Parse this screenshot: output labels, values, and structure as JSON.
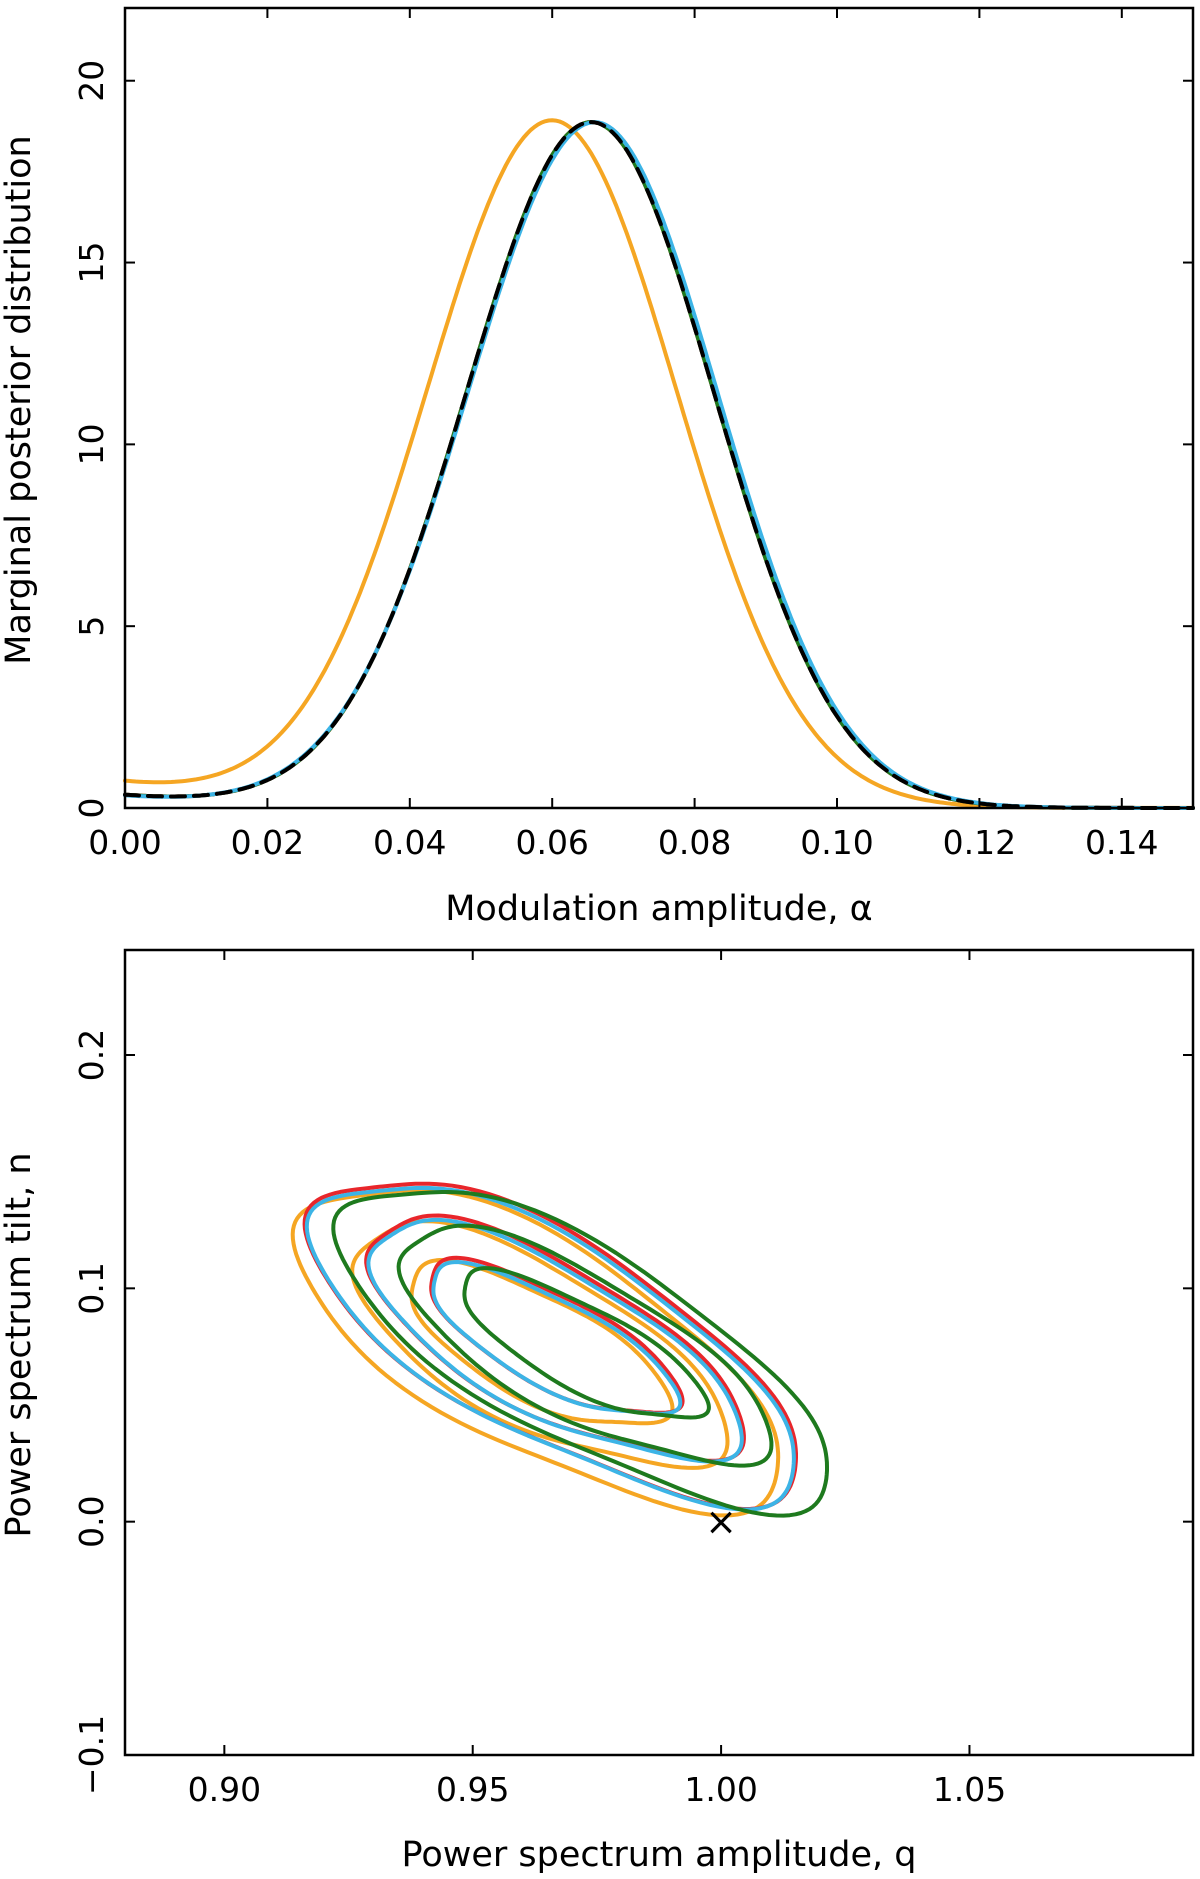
{
  "chart_data": [
    {
      "type": "line",
      "panel": "top",
      "xlabel": "Modulation amplitude, α",
      "ylabel": "Marginal posterior distribution",
      "xlim": [
        0.0,
        0.15
      ],
      "ylim": [
        0,
        22
      ],
      "xticks": [
        0.0,
        0.02,
        0.04,
        0.06,
        0.08,
        0.1,
        0.12,
        0.14
      ],
      "xtick_labels": [
        "0.00",
        "0.02",
        "0.04",
        "0.06",
        "0.08",
        "0.10",
        "0.12",
        "0.14"
      ],
      "yticks": [
        0,
        5,
        10,
        15,
        20
      ],
      "ytick_labels": [
        "0",
        "5",
        "10",
        "15",
        "20"
      ],
      "series": [
        {
          "name": "orange",
          "color": "#f5a623",
          "dash": "",
          "peak_x": 0.06,
          "peak_y": 18.85,
          "sigma_left": 0.0175,
          "sigma_right": 0.0175,
          "floor": 0.7,
          "floor_scale": 0.025
        },
        {
          "name": "red",
          "color": "#e8262b",
          "dash": "",
          "peak_x": 0.0655,
          "peak_y": 18.85,
          "sigma_left": 0.0175,
          "sigma_right": 0.0172,
          "floor": 0.35,
          "floor_scale": 0.02
        },
        {
          "name": "green",
          "color": "#1e7a1e",
          "dash": "",
          "peak_x": 0.0655,
          "peak_y": 18.85,
          "sigma_left": 0.0175,
          "sigma_right": 0.0172,
          "floor": 0.35,
          "floor_scale": 0.02
        },
        {
          "name": "blue",
          "color": "#3cb4e6",
          "dash": "",
          "peak_x": 0.066,
          "peak_y": 18.85,
          "sigma_left": 0.0178,
          "sigma_right": 0.0172,
          "floor": 0.33,
          "floor_scale": 0.02
        },
        {
          "name": "black dashed",
          "color": "#000000",
          "dash": "14,9",
          "peak_x": 0.0655,
          "peak_y": 18.85,
          "sigma_left": 0.0175,
          "sigma_right": 0.0172,
          "floor": 0.35,
          "floor_scale": 0.02
        }
      ]
    },
    {
      "type": "contour",
      "panel": "bottom",
      "xlabel": "Power spectrum amplitude, q",
      "ylabel": "Power spectrum tilt, n",
      "xlim": [
        0.88,
        1.095
      ],
      "ylim": [
        -0.1,
        0.245
      ],
      "xticks": [
        0.9,
        0.95,
        1.0,
        1.05
      ],
      "xtick_labels": [
        "0.90",
        "0.95",
        "1.00",
        "1.05"
      ],
      "yticks": [
        -0.1,
        0.0,
        0.1,
        0.2
      ],
      "ytick_labels": [
        "−0.1",
        "0.0",
        "0.1",
        "0.2"
      ],
      "marker": {
        "symbol": "×",
        "x": 1.0,
        "y": 0.0
      },
      "series": [
        {
          "name": "orange",
          "color": "#f5a623",
          "center": [
            0.963,
            0.075
          ],
          "levels": [
            {
              "a": 0.0645,
              "b": 0.025,
              "angle": -33
            },
            {
              "a": 0.093,
              "b": 0.038,
              "angle": -34
            },
            {
              "a": 0.122,
              "b": 0.05,
              "angle": -35
            }
          ]
        },
        {
          "name": "red",
          "color": "#e8262b",
          "center": [
            0.966,
            0.078
          ],
          "levels": [
            {
              "a": 0.0625,
              "b": 0.022,
              "angle": -33
            },
            {
              "a": 0.094,
              "b": 0.036,
              "angle": -34
            },
            {
              "a": 0.124,
              "b": 0.048,
              "angle": -35
            }
          ]
        },
        {
          "name": "blue",
          "color": "#3cb4e6",
          "center": [
            0.966,
            0.077
          ],
          "levels": [
            {
              "a": 0.0615,
              "b": 0.021,
              "angle": -33
            },
            {
              "a": 0.093,
              "b": 0.035,
              "angle": -34
            },
            {
              "a": 0.123,
              "b": 0.047,
              "angle": -35
            }
          ]
        },
        {
          "name": "green",
          "color": "#1e7a1e",
          "center": [
            0.972,
            0.075
          ],
          "levels": [
            {
              "a": 0.061,
              "b": 0.02,
              "angle": -33
            },
            {
              "a": 0.093,
              "b": 0.034,
              "angle": -34
            },
            {
              "a": 0.125,
              "b": 0.046,
              "angle": -35
            }
          ]
        }
      ]
    }
  ]
}
